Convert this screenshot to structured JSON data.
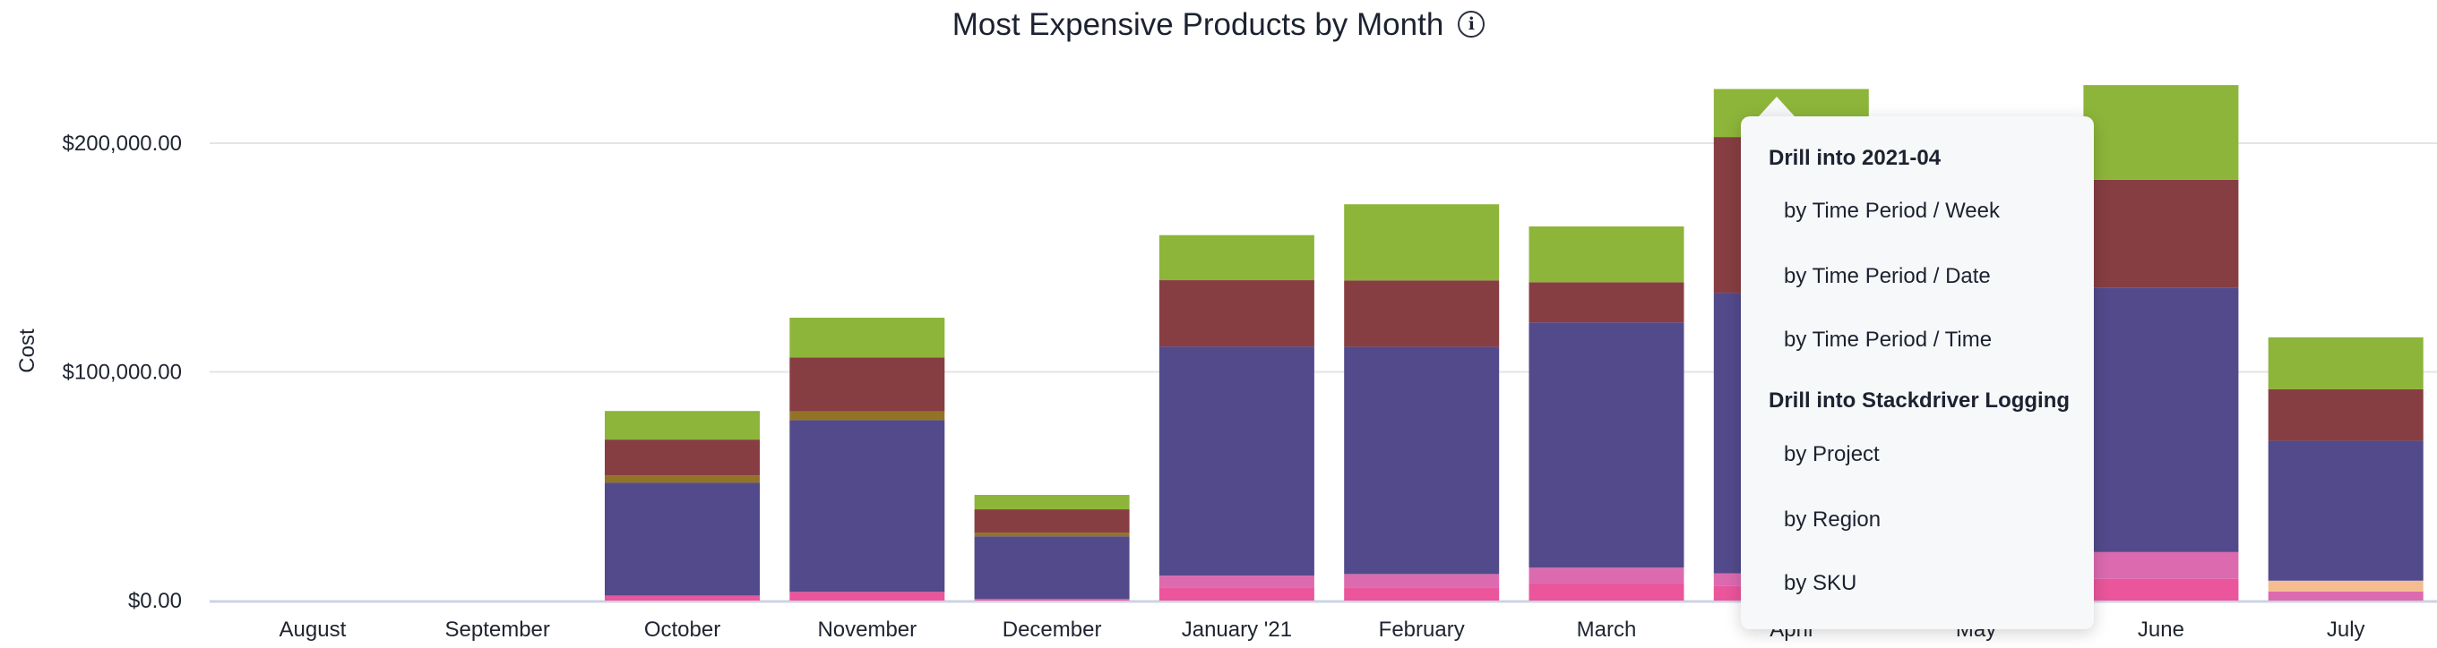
{
  "chart_data": {
    "type": "bar",
    "stacked": true,
    "title": "Most Expensive Products by Month",
    "title_icon": "info-icon",
    "xlabel": "",
    "ylabel": "Cost",
    "ylim": [
      0,
      230000
    ],
    "yticks": [
      0,
      100000,
      200000
    ],
    "ytick_labels": [
      "$0.00",
      "$100,000.00",
      "$200,000.00"
    ],
    "grid": true,
    "legend": "none",
    "categories": [
      "August",
      "September",
      "October",
      "November",
      "December",
      "January '21",
      "February",
      "March",
      "April",
      "May",
      "June",
      "July"
    ],
    "series": [
      {
        "color": "#ea559b",
        "values": [
          0,
          0,
          2200,
          3800,
          700,
          5500,
          5500,
          7700,
          6400,
          null,
          9500,
          0
        ]
      },
      {
        "color": "#dc6aaf",
        "values": [
          0,
          0,
          0,
          0,
          0,
          5400,
          6100,
          6700,
          5500,
          null,
          11700,
          4000
        ]
      },
      {
        "color": "#f5bd8f",
        "values": [
          0,
          0,
          0,
          0,
          0,
          0,
          0,
          0,
          0,
          null,
          0,
          4700
        ]
      },
      {
        "color": "#524a8b",
        "values": [
          0,
          0,
          49400,
          75100,
          27400,
          100200,
          99400,
          107200,
          122700,
          null,
          115700,
          61200
        ]
      },
      {
        "color": "#937326",
        "values": [
          0,
          0,
          3100,
          3900,
          1600,
          0,
          0,
          0,
          0,
          null,
          0,
          0
        ]
      },
      {
        "color": "#873e42",
        "values": [
          0,
          0,
          15700,
          23500,
          10200,
          29000,
          29000,
          17600,
          68100,
          null,
          47100,
          22500
        ]
      },
      {
        "color": "#8db53a",
        "values": [
          0,
          0,
          12500,
          17400,
          6300,
          19700,
          33300,
          24400,
          21000,
          null,
          41400,
          22700
        ]
      }
    ]
  },
  "popup": {
    "section1": "Drill into 2021-04",
    "items1": [
      "by Time Period / Week",
      "by Time Period / Date",
      "by Time Period / Time"
    ],
    "section2": "Drill into Stackdriver Logging",
    "items2": [
      "by Project",
      "by Region",
      "by SKU"
    ]
  }
}
